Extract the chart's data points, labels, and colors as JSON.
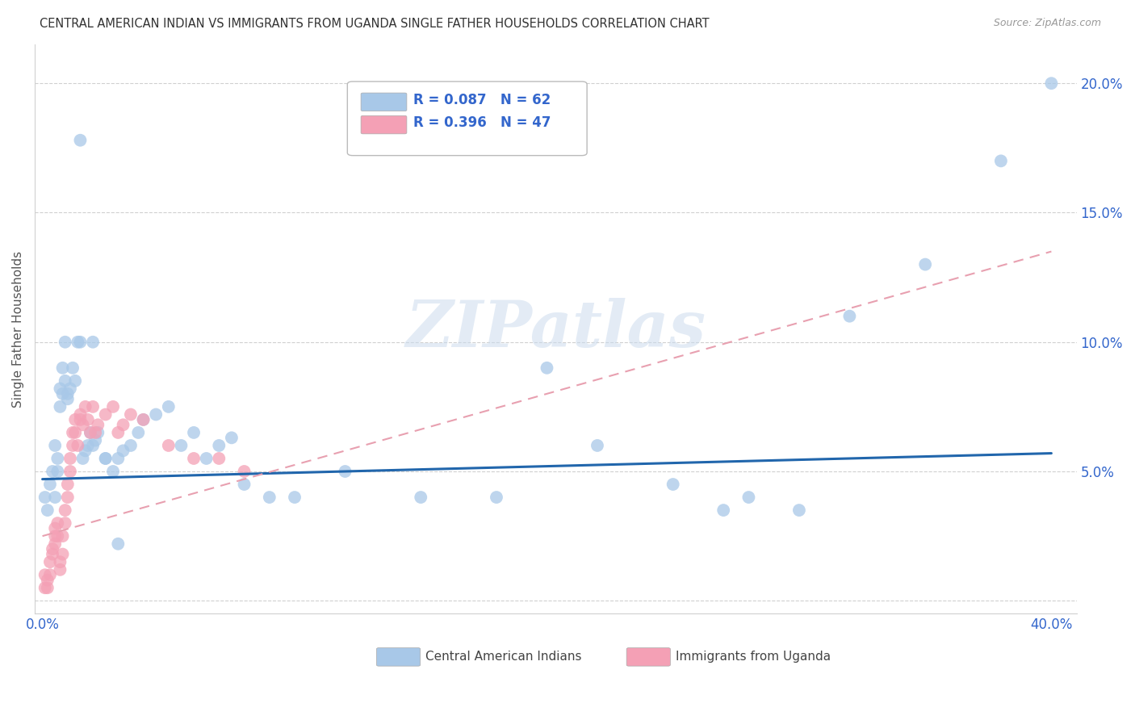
{
  "title": "CENTRAL AMERICAN INDIAN VS IMMIGRANTS FROM UGANDA SINGLE FATHER HOUSEHOLDS CORRELATION CHART",
  "source": "Source: ZipAtlas.com",
  "ylabel": "Single Father Households",
  "color_blue": "#a8c8e8",
  "color_pink": "#f4a0b5",
  "color_blue_line": "#2166ac",
  "color_pink_line": "#e8a0b0",
  "legend_R1": "R = 0.087",
  "legend_N1": "N = 62",
  "legend_R2": "R = 0.396",
  "legend_N2": "N = 47",
  "blue_x": [
    0.001,
    0.002,
    0.003,
    0.004,
    0.005,
    0.005,
    0.006,
    0.006,
    0.007,
    0.007,
    0.008,
    0.008,
    0.009,
    0.009,
    0.01,
    0.01,
    0.011,
    0.012,
    0.013,
    0.014,
    0.015,
    0.016,
    0.017,
    0.018,
    0.019,
    0.02,
    0.021,
    0.022,
    0.025,
    0.028,
    0.03,
    0.032,
    0.035,
    0.038,
    0.04,
    0.045,
    0.05,
    0.055,
    0.06,
    0.065,
    0.07,
    0.075,
    0.08,
    0.09,
    0.1,
    0.12,
    0.15,
    0.18,
    0.2,
    0.22,
    0.25,
    0.27,
    0.28,
    0.3,
    0.32,
    0.35,
    0.38,
    0.4,
    0.015,
    0.02,
    0.025,
    0.03
  ],
  "blue_y": [
    0.04,
    0.035,
    0.045,
    0.05,
    0.04,
    0.06,
    0.055,
    0.05,
    0.075,
    0.082,
    0.09,
    0.08,
    0.1,
    0.085,
    0.08,
    0.078,
    0.082,
    0.09,
    0.085,
    0.1,
    0.1,
    0.055,
    0.058,
    0.06,
    0.065,
    0.06,
    0.062,
    0.065,
    0.055,
    0.05,
    0.055,
    0.058,
    0.06,
    0.065,
    0.07,
    0.072,
    0.075,
    0.06,
    0.065,
    0.055,
    0.06,
    0.063,
    0.045,
    0.04,
    0.04,
    0.05,
    0.04,
    0.04,
    0.09,
    0.06,
    0.045,
    0.035,
    0.04,
    0.035,
    0.11,
    0.13,
    0.17,
    0.2,
    0.178,
    0.1,
    0.055,
    0.022
  ],
  "pink_x": [
    0.001,
    0.001,
    0.002,
    0.002,
    0.003,
    0.003,
    0.004,
    0.004,
    0.005,
    0.005,
    0.005,
    0.006,
    0.006,
    0.007,
    0.007,
    0.008,
    0.008,
    0.009,
    0.009,
    0.01,
    0.01,
    0.011,
    0.011,
    0.012,
    0.012,
    0.013,
    0.013,
    0.014,
    0.015,
    0.015,
    0.016,
    0.017,
    0.018,
    0.019,
    0.02,
    0.021,
    0.022,
    0.025,
    0.028,
    0.03,
    0.032,
    0.035,
    0.04,
    0.05,
    0.06,
    0.07,
    0.08
  ],
  "pink_y": [
    0.005,
    0.01,
    0.005,
    0.008,
    0.01,
    0.015,
    0.02,
    0.018,
    0.022,
    0.025,
    0.028,
    0.03,
    0.025,
    0.015,
    0.012,
    0.018,
    0.025,
    0.03,
    0.035,
    0.04,
    0.045,
    0.05,
    0.055,
    0.06,
    0.065,
    0.07,
    0.065,
    0.06,
    0.07,
    0.072,
    0.068,
    0.075,
    0.07,
    0.065,
    0.075,
    0.065,
    0.068,
    0.072,
    0.075,
    0.065,
    0.068,
    0.072,
    0.07,
    0.06,
    0.055,
    0.055,
    0.05
  ],
  "blue_line_x": [
    0.0,
    0.4
  ],
  "blue_line_y": [
    0.047,
    0.057
  ],
  "pink_line_x": [
    0.0,
    0.4
  ],
  "pink_line_y": [
    0.025,
    0.135
  ],
  "xlim": [
    -0.003,
    0.41
  ],
  "ylim": [
    -0.005,
    0.215
  ],
  "xticks": [
    0.0,
    0.1,
    0.2,
    0.3,
    0.4
  ],
  "xtick_labels": [
    "0.0%",
    "",
    "",
    "",
    "40.0%"
  ],
  "yticks": [
    0.0,
    0.05,
    0.1,
    0.15,
    0.2
  ],
  "ytick_labels_right": [
    "",
    "5.0%",
    "10.0%",
    "15.0%",
    "20.0%"
  ],
  "watermark_text": "ZIPatlas",
  "background_color": "#ffffff",
  "grid_color": "#d0d0d0"
}
